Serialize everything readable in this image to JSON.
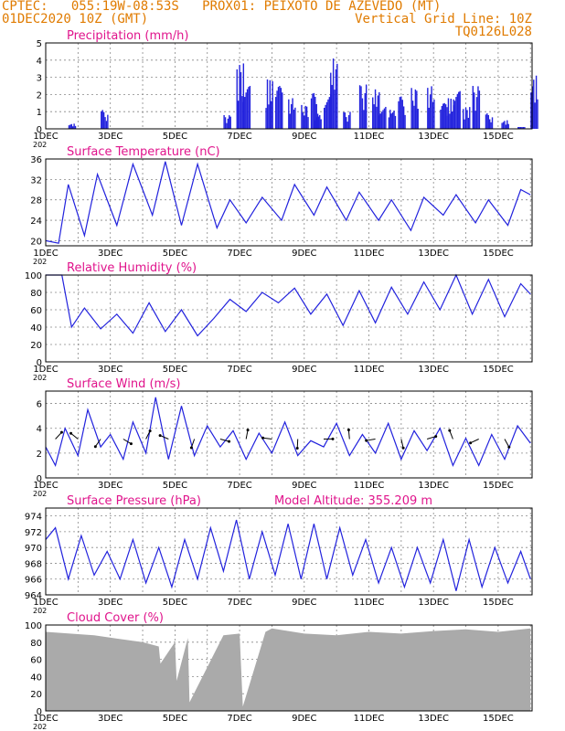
{
  "header": {
    "line1_left": "CPTEC:   055:19W-08:53S   PROX01: PEIXOTO DE AZEVEDO (MT)",
    "line2_left": "01DEC2020 10Z (GMT)",
    "line2_right": "Vertical Grid Line: 10Z",
    "line3_right": "TQ0126L028"
  },
  "colors": {
    "header": "#e07b00",
    "title": "#e0148c",
    "line": "#2222dd",
    "cloud": "#aaaaaa",
    "grid": "#888888"
  },
  "x_ticks": [
    "1DEC",
    "3DEC",
    "5DEC",
    "7DEC",
    "9DEC",
    "11DEC",
    "13DEC",
    "15DEC"
  ],
  "year_fragment": "202",
  "chart_data": [
    {
      "type": "bar",
      "title": "Precipitation (mm/h)",
      "ylim": [
        0,
        5
      ],
      "yticks": [
        0,
        1,
        2,
        3,
        4,
        5
      ],
      "x_days": [
        0,
        15
      ],
      "bursts": [
        [
          0.7,
          0.3
        ],
        [
          1.7,
          1.1
        ],
        [
          5.5,
          0.8
        ],
        [
          5.9,
          3.9
        ],
        [
          6.1,
          2.5
        ],
        [
          6.8,
          2.9
        ],
        [
          7.1,
          2.5
        ],
        [
          7.5,
          1.8
        ],
        [
          7.9,
          1.4
        ],
        [
          8.2,
          2.1
        ],
        [
          8.3,
          0.9
        ],
        [
          8.6,
          2.5
        ],
        [
          8.8,
          4.1
        ],
        [
          9.2,
          1.0
        ],
        [
          9.7,
          2.6
        ],
        [
          10.1,
          2.3
        ],
        [
          10.3,
          1.6
        ],
        [
          10.6,
          1.2
        ],
        [
          10.9,
          1.9
        ],
        [
          11.3,
          2.4
        ],
        [
          11.8,
          2.5
        ],
        [
          12.2,
          1.5
        ],
        [
          12.4,
          1.8
        ],
        [
          12.6,
          2.2
        ],
        [
          12.9,
          1.3
        ],
        [
          13.2,
          2.5
        ],
        [
          13.6,
          0.9
        ],
        [
          14.1,
          0.5
        ],
        [
          14.6,
          0.3
        ],
        [
          15.0,
          3.1
        ]
      ]
    },
    {
      "type": "line",
      "title": "Surface Temperature (nC)",
      "ylim": [
        19,
        36
      ],
      "yticks": [
        20,
        24,
        28,
        32,
        36
      ],
      "x": [
        0,
        0.4,
        0.7,
        1.2,
        1.6,
        2.2,
        2.7,
        3.3,
        3.7,
        4.2,
        4.7,
        5.3,
        5.7,
        6.2,
        6.7,
        7.3,
        7.7,
        8.3,
        8.7,
        9.3,
        9.7,
        10.3,
        10.7,
        11.3,
        11.7,
        12.3,
        12.7,
        13.3,
        13.7,
        14.3,
        14.7,
        15.0
      ],
      "y": [
        20,
        19.5,
        31,
        21,
        33,
        23,
        35,
        25,
        35.5,
        23,
        35,
        22.5,
        28,
        23.5,
        28.5,
        24,
        31,
        25,
        30.5,
        24,
        29.5,
        24,
        28,
        22,
        28.5,
        25,
        29,
        23.5,
        28,
        23,
        30,
        29
      ]
    },
    {
      "type": "line",
      "title": "Relative Humidity (%)",
      "ylim": [
        0,
        100
      ],
      "yticks": [
        0,
        20,
        40,
        60,
        80,
        100
      ],
      "x": [
        0,
        0.5,
        0.8,
        1.2,
        1.7,
        2.2,
        2.7,
        3.2,
        3.7,
        4.2,
        4.7,
        5.2,
        5.7,
        6.2,
        6.7,
        7.2,
        7.7,
        8.2,
        8.7,
        9.2,
        9.7,
        10.2,
        10.7,
        11.2,
        11.7,
        12.2,
        12.7,
        13.2,
        13.7,
        14.2,
        14.7,
        15.0
      ],
      "y": [
        100,
        100,
        40,
        62,
        38,
        55,
        33,
        68,
        35,
        60,
        30,
        50,
        72,
        58,
        80,
        68,
        85,
        55,
        78,
        42,
        82,
        45,
        86,
        55,
        92,
        60,
        100,
        55,
        95,
        52,
        90,
        78
      ]
    },
    {
      "type": "line",
      "title": "Surface Wind (m/s)",
      "ylim": [
        0,
        7
      ],
      "yticks": [
        0,
        2,
        4,
        6
      ],
      "x": [
        0,
        0.3,
        0.6,
        1.0,
        1.3,
        1.7,
        2.0,
        2.4,
        2.7,
        3.1,
        3.4,
        3.8,
        4.2,
        4.6,
        5.0,
        5.4,
        5.8,
        6.2,
        6.6,
        7.0,
        7.4,
        7.8,
        8.2,
        8.6,
        9.0,
        9.4,
        9.8,
        10.2,
        10.6,
        11.0,
        11.4,
        11.8,
        12.2,
        12.6,
        13.0,
        13.4,
        13.8,
        14.2,
        14.6,
        15.0
      ],
      "y": [
        2.5,
        1.0,
        4.0,
        1.8,
        5.5,
        2.5,
        3.5,
        1.5,
        4.5,
        2.0,
        6.5,
        1.5,
        5.8,
        1.8,
        4.2,
        2.5,
        3.8,
        1.5,
        3.6,
        2.0,
        4.5,
        1.8,
        3.0,
        2.5,
        4.4,
        1.8,
        3.5,
        2.0,
        4.4,
        1.5,
        3.8,
        2.2,
        4.0,
        1.0,
        3.2,
        1.0,
        3.5,
        1.5,
        4.2,
        2.8
      ]
    },
    {
      "type": "line",
      "title": "Surface Pressure (hPa)",
      "annotation": "Model Altitude: 355.209 m",
      "ylim": [
        964,
        975
      ],
      "yticks": [
        964,
        966,
        968,
        970,
        972,
        974
      ],
      "x": [
        0,
        0.3,
        0.7,
        1.1,
        1.5,
        1.9,
        2.3,
        2.7,
        3.1,
        3.5,
        3.9,
        4.3,
        4.7,
        5.1,
        5.5,
        5.9,
        6.3,
        6.7,
        7.1,
        7.5,
        7.9,
        8.3,
        8.7,
        9.1,
        9.5,
        9.9,
        10.3,
        10.7,
        11.1,
        11.5,
        11.9,
        12.3,
        12.7,
        13.1,
        13.5,
        13.9,
        14.3,
        14.7,
        15.0
      ],
      "y": [
        971,
        972.5,
        966,
        971.5,
        966.5,
        969.5,
        966,
        971,
        965.5,
        970,
        965,
        971,
        966,
        972.5,
        967,
        973.5,
        966,
        972,
        966.5,
        973,
        966,
        973,
        966,
        972.5,
        966.5,
        971,
        965.5,
        970,
        965,
        970,
        965.5,
        971,
        964.5,
        971,
        965,
        970,
        965.5,
        969.5,
        966
      ]
    },
    {
      "type": "area",
      "title": "Cloud Cover (%)",
      "ylim": [
        0,
        100
      ],
      "yticks": [
        0,
        20,
        40,
        60,
        80,
        100
      ],
      "x": [
        0,
        1.5,
        3.0,
        3.5,
        3.55,
        4.0,
        4.05,
        4.4,
        4.45,
        5.5,
        6.0,
        6.1,
        6.8,
        7.0,
        8.0,
        9.0,
        10.0,
        11.0,
        12.0,
        13.0,
        14.0,
        15.0
      ],
      "y": [
        92,
        88,
        80,
        75,
        55,
        80,
        35,
        85,
        10,
        88,
        90,
        5,
        92,
        96,
        90,
        88,
        92,
        90,
        93,
        95,
        92,
        96
      ]
    }
  ]
}
